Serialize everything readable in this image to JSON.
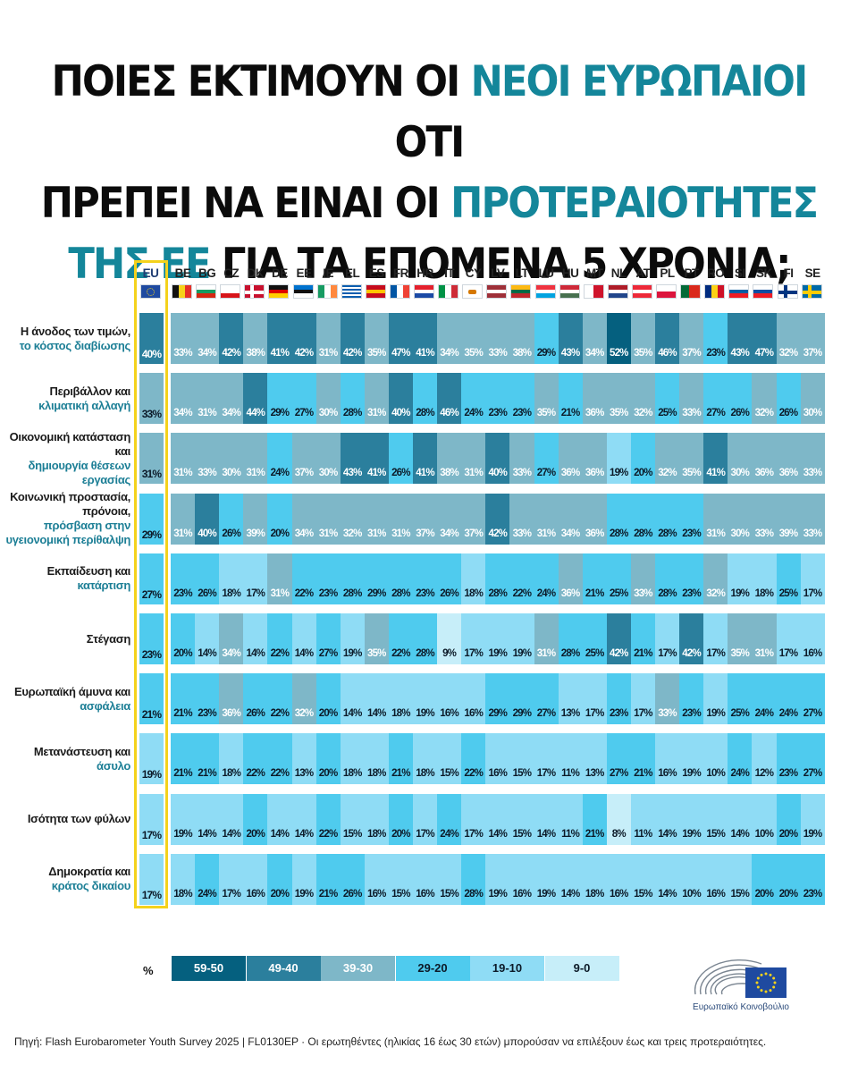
{
  "title": {
    "line1_a": "ΠΟΙΕΣ ΕΚΤΙΜΟΥΝ ΟΙ ",
    "line1_hl": "ΝΕΟΙ ΕΥΡΩΠΑΙΟΙ",
    "line1_b": " ΟΤΙ",
    "line2_a": "ΠΡΕΠΕΙ ΝΑ ΕΙΝΑΙ ΟΙ ",
    "line2_hl": "ΠΡΟΤΕΡΑΙΟΤΗΤΕΣ",
    "line3_hl": "ΤΗΣ ΕΕ",
    "line3_b": " ΓΙΑ ΤΑ ΕΠΟΜΕΝΑ 5 ΧΡΟΝΙΑ;"
  },
  "colors": {
    "highlight": "#14869a",
    "eu_frame": "#f4d21c",
    "scale": [
      "#c7eef9",
      "#8fdcf5",
      "#4fcbee",
      "#7eb7c8",
      "#2b7f9d",
      "#05607f"
    ]
  },
  "legend": {
    "unit": "%",
    "items": [
      {
        "label": "59-50",
        "level": 5
      },
      {
        "label": "49-40",
        "level": 4
      },
      {
        "label": "39-30",
        "level": 3
      },
      {
        "label": "29-20",
        "level": 2
      },
      {
        "label": "19-10",
        "level": 1
      },
      {
        "label": "9-0",
        "level": 0
      }
    ]
  },
  "chart_data": {
    "type": "heatmap",
    "value_suffix": "%",
    "eu_column": "EU",
    "columns": [
      "BE",
      "BG",
      "CZ",
      "DK",
      "DE",
      "EE",
      "IE",
      "EL",
      "ES",
      "FR",
      "HR",
      "IT",
      "CY",
      "LV",
      "LT",
      "LU",
      "HU",
      "MT",
      "NL",
      "AT",
      "PL",
      "PT",
      "RO",
      "SI",
      "SK",
      "FI",
      "SE"
    ],
    "rows": [
      {
        "label_dark": "Η άνοδος των τιμών,",
        "label_hl": "το κόστος διαβίωσης",
        "eu": 40,
        "values": [
          33,
          34,
          42,
          38,
          41,
          42,
          31,
          42,
          35,
          47,
          41,
          34,
          35,
          33,
          38,
          29,
          43,
          34,
          52,
          35,
          46,
          37,
          23,
          43,
          47,
          32,
          37
        ]
      },
      {
        "label_dark": "Περιβάλλον και",
        "label_hl": "κλιματική αλλαγή",
        "eu": 33,
        "values": [
          34,
          31,
          34,
          44,
          29,
          27,
          30,
          28,
          31,
          40,
          28,
          46,
          24,
          23,
          23,
          35,
          21,
          36,
          35,
          32,
          25,
          33,
          27,
          26,
          32,
          26,
          30
        ]
      },
      {
        "label_dark": "Οικονομική κατάσταση και",
        "label_hl": "δημιουργία θέσεων εργασίας",
        "eu": 31,
        "values": [
          31,
          33,
          30,
          31,
          24,
          37,
          30,
          43,
          41,
          26,
          41,
          38,
          31,
          40,
          33,
          27,
          36,
          36,
          19,
          20,
          32,
          35,
          41,
          30,
          36,
          36,
          33
        ]
      },
      {
        "label_dark": "Κοινωνική προστασία, πρόνοια,",
        "label_hl": "πρόσβαση στην υγειονομική περίθαλψη",
        "eu": 29,
        "values": [
          31,
          40,
          26,
          39,
          20,
          34,
          31,
          32,
          31,
          31,
          37,
          34,
          37,
          42,
          33,
          31,
          34,
          36,
          28,
          28,
          28,
          23,
          31,
          30,
          33,
          39,
          33
        ]
      },
      {
        "label_dark": "Εκπαίδευση και",
        "label_hl": "κατάρτιση",
        "eu": 27,
        "values": [
          23,
          26,
          18,
          17,
          31,
          22,
          23,
          28,
          29,
          28,
          23,
          26,
          18,
          28,
          22,
          24,
          36,
          21,
          25,
          33,
          28,
          23,
          32,
          19,
          18,
          25,
          17
        ]
      },
      {
        "label_dark": "Στέγαση",
        "label_hl": "",
        "eu": 23,
        "values": [
          20,
          14,
          34,
          14,
          22,
          14,
          27,
          19,
          35,
          22,
          28,
          9,
          17,
          19,
          19,
          31,
          28,
          25,
          42,
          21,
          17,
          42,
          17,
          35,
          31,
          17,
          16
        ]
      },
      {
        "label_dark": "Ευρωπαϊκή άμυνα και",
        "label_hl": "ασφάλεια",
        "eu": 21,
        "values": [
          21,
          23,
          36,
          26,
          22,
          32,
          20,
          14,
          14,
          18,
          19,
          16,
          16,
          29,
          29,
          27,
          13,
          17,
          23,
          17,
          33,
          23,
          19,
          25,
          24,
          24,
          27
        ]
      },
      {
        "label_dark": "Μετανάστευση και",
        "label_hl": "άσυλο",
        "eu": 19,
        "values": [
          21,
          21,
          18,
          22,
          22,
          13,
          20,
          18,
          18,
          21,
          18,
          15,
          22,
          16,
          15,
          17,
          11,
          13,
          27,
          21,
          16,
          19,
          10,
          24,
          12,
          23,
          27
        ]
      },
      {
        "label_dark": "Ισότητα των φύλων",
        "label_hl": "",
        "eu": 17,
        "values": [
          19,
          14,
          14,
          20,
          14,
          14,
          22,
          15,
          18,
          20,
          17,
          24,
          17,
          14,
          15,
          14,
          11,
          21,
          8,
          11,
          14,
          19,
          15,
          14,
          10,
          20,
          19
        ]
      },
      {
        "label_dark": "Δημοκρατία και",
        "label_hl": "κράτος δικαίου",
        "eu": 17,
        "values": [
          18,
          24,
          17,
          16,
          20,
          19,
          21,
          26,
          16,
          15,
          16,
          15,
          28,
          19,
          16,
          19,
          14,
          18,
          16,
          15,
          14,
          10,
          16,
          15,
          20,
          20,
          23
        ]
      }
    ]
  },
  "logo": {
    "name": "Ευρωπαϊκό Κοινοβούλιο"
  },
  "source": "Πηγή: Flash Eurobarometer Youth Survey 2025 | FL0130EP · Οι ερωτηθέντες (ηλικίας 16 έως 30 ετών) μπορούσαν να επιλέξουν έως και τρεις προτεραιότητες."
}
